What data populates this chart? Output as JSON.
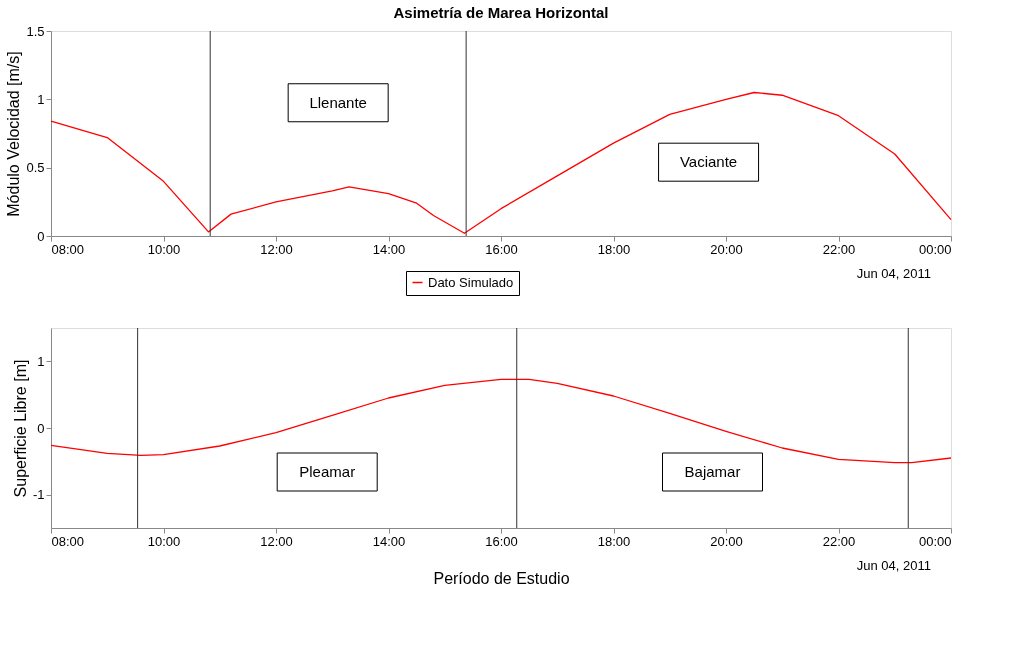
{
  "chart_data": [
    {
      "type": "line",
      "title": "Asimetría de Marea Horizontal",
      "ylabel": "Módulo Velocidad [m/s]",
      "series": [
        {
          "name": "Dato Simulado",
          "color": "#ff0000",
          "x": [
            8,
            9,
            10,
            10.8,
            11.2,
            12,
            13,
            13.3,
            14,
            14.5,
            14.8,
            15.35,
            16,
            17,
            18,
            19,
            20,
            20.5,
            21,
            22,
            23,
            24
          ],
          "values": [
            0.84,
            0.72,
            0.4,
            0.03,
            0.16,
            0.25,
            0.33,
            0.36,
            0.31,
            0.24,
            0.15,
            0.02,
            0.2,
            0.44,
            0.68,
            0.89,
            1.0,
            1.05,
            1.03,
            0.88,
            0.6,
            0.12
          ]
        }
      ],
      "xlim": [
        8,
        24
      ],
      "ylim": [
        0,
        1.5
      ],
      "xticks": [
        {
          "value": 8,
          "label": "08:00"
        },
        {
          "value": 10,
          "label": "10:00"
        },
        {
          "value": 12,
          "label": "12:00"
        },
        {
          "value": 14,
          "label": "14:00"
        },
        {
          "value": 16,
          "label": "16:00"
        },
        {
          "value": 18,
          "label": "18:00"
        },
        {
          "value": 20,
          "label": "20:00"
        },
        {
          "value": 22,
          "label": "22:00"
        },
        {
          "value": 24,
          "label": "00:00"
        }
      ],
      "yticks": [
        0,
        0.5,
        1,
        1.5
      ],
      "ref_lines": [
        {
          "axis": "x",
          "value": 10.83,
          "color": "#333333"
        },
        {
          "axis": "x",
          "value": 15.38,
          "color": "#333333"
        }
      ],
      "annotations": [
        "Llenante",
        "Vaciante",
        "Jun 04, 2011"
      ],
      "legend": "bottom",
      "grid": false
    },
    {
      "type": "line",
      "xlabel": "Período de Estudio",
      "ylabel": "Superficie Libre [m]",
      "series": [
        {
          "color": "#ff0000",
          "x": [
            8,
            9,
            9.6,
            10,
            11,
            12,
            13,
            14,
            15,
            16,
            16.5,
            17,
            18,
            19,
            20,
            21,
            22,
            23,
            23.3,
            24
          ],
          "values": [
            -0.26,
            -0.38,
            -0.41,
            -0.4,
            -0.27,
            -0.07,
            0.19,
            0.45,
            0.64,
            0.73,
            0.73,
            0.67,
            0.48,
            0.22,
            -0.05,
            -0.3,
            -0.47,
            -0.52,
            -0.52,
            -0.45
          ]
        }
      ],
      "xlim": [
        8,
        24
      ],
      "ylim": [
        -1.5,
        1.5
      ],
      "xticks": [
        {
          "value": 8,
          "label": "08:00"
        },
        {
          "value": 10,
          "label": "10:00"
        },
        {
          "value": 12,
          "label": "12:00"
        },
        {
          "value": 14,
          "label": "14:00"
        },
        {
          "value": 16,
          "label": "16:00"
        },
        {
          "value": 18,
          "label": "18:00"
        },
        {
          "value": 20,
          "label": "20:00"
        },
        {
          "value": 22,
          "label": "22:00"
        },
        {
          "value": 24,
          "label": "00:00"
        }
      ],
      "yticks": [
        -1,
        0,
        1
      ],
      "ref_lines": [
        {
          "axis": "x",
          "value": 9.54,
          "color": "#333333"
        },
        {
          "axis": "x",
          "value": 16.28,
          "color": "#333333"
        },
        {
          "axis": "x",
          "value": 23.24,
          "color": "#333333"
        }
      ],
      "annotations": [
        "Pleamar",
        "Bajamar",
        "Jun 04, 2011"
      ],
      "grid": false
    }
  ]
}
